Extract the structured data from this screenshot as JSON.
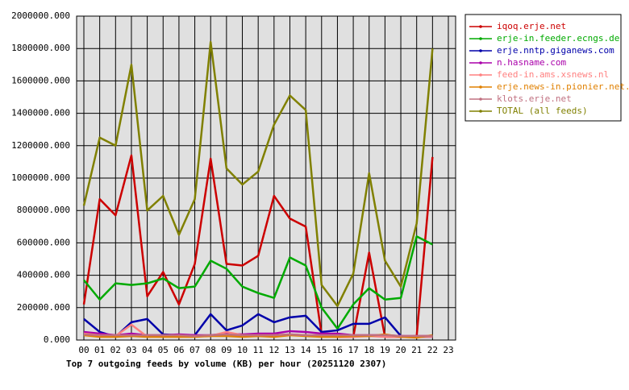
{
  "chart_data": {
    "type": "line",
    "title": "Top 7 outgoing feeds by volume (KB) per hour (20251120 2307)",
    "categories": [
      "00",
      "01",
      "02",
      "03",
      "04",
      "05",
      "06",
      "07",
      "08",
      "09",
      "10",
      "11",
      "12",
      "13",
      "14",
      "15",
      "16",
      "17",
      "18",
      "19",
      "20",
      "21",
      "22",
      "23"
    ],
    "ylim": [
      0,
      2000000
    ],
    "yticks": [
      {
        "value": 0,
        "label": "0.000"
      },
      {
        "value": 200000,
        "label": "200000.000"
      },
      {
        "value": 400000,
        "label": "400000.000"
      },
      {
        "value": 600000,
        "label": "600000.000"
      },
      {
        "value": 800000,
        "label": "800000.000"
      },
      {
        "value": 1000000,
        "label": "1000000.000"
      },
      {
        "value": 1200000,
        "label": "1200000.000"
      },
      {
        "value": 1400000,
        "label": "1400000.000"
      },
      {
        "value": 1600000,
        "label": "1600000.000"
      },
      {
        "value": 1800000,
        "label": "1800000.000"
      },
      {
        "value": 2000000,
        "label": "2000000.000"
      }
    ],
    "grid": true,
    "legend": "right",
    "series": [
      {
        "name": "iqoq.erje.net",
        "color": "#cc0000",
        "values": [
          220000,
          870000,
          770000,
          1140000,
          270000,
          420000,
          220000,
          470000,
          1120000,
          470000,
          460000,
          520000,
          890000,
          750000,
          700000,
          35000,
          20000,
          20000,
          540000,
          20000,
          20000,
          25000,
          1130000,
          null
        ]
      },
      {
        "name": "erje-in.feeder.ecngs.de",
        "color": "#00aa00",
        "values": [
          370000,
          250000,
          350000,
          340000,
          350000,
          380000,
          320000,
          330000,
          490000,
          440000,
          330000,
          290000,
          260000,
          510000,
          460000,
          200000,
          70000,
          220000,
          320000,
          250000,
          260000,
          640000,
          590000,
          null
        ]
      },
      {
        "name": "erje.nntp.giganews.com",
        "color": "#0000aa",
        "values": [
          130000,
          50000,
          20000,
          110000,
          130000,
          35000,
          30000,
          30000,
          160000,
          60000,
          90000,
          160000,
          110000,
          140000,
          150000,
          50000,
          60000,
          100000,
          100000,
          140000,
          25000,
          20000,
          20000,
          null
        ]
      },
      {
        "name": "n.hasname.com",
        "color": "#aa00aa",
        "values": [
          50000,
          40000,
          30000,
          40000,
          30000,
          30000,
          35000,
          30000,
          30000,
          40000,
          35000,
          40000,
          40000,
          55000,
          50000,
          40000,
          40000,
          30000,
          30000,
          30000,
          25000,
          25000,
          25000,
          null
        ]
      },
      {
        "name": "feed-in.ams.xsnews.nl",
        "color": "#ff8080",
        "values": [
          40000,
          30000,
          25000,
          95000,
          20000,
          25000,
          20000,
          25000,
          25000,
          50000,
          30000,
          30000,
          30000,
          35000,
          30000,
          25000,
          20000,
          20000,
          25000,
          20000,
          20000,
          20000,
          20000,
          null
        ]
      },
      {
        "name": "erje.news-in.pionier.net.pl",
        "color": "#e08000",
        "values": [
          30000,
          20000,
          20000,
          25000,
          20000,
          20000,
          20000,
          20000,
          25000,
          25000,
          20000,
          25000,
          20000,
          30000,
          25000,
          20000,
          20000,
          25000,
          25000,
          35000,
          20000,
          15000,
          30000,
          null
        ]
      },
      {
        "name": "klots.erje.net",
        "color": "#c07080",
        "values": [
          35000,
          30000,
          30000,
          30000,
          30000,
          30000,
          30000,
          25000,
          30000,
          35000,
          30000,
          30000,
          30000,
          35000,
          30000,
          30000,
          30000,
          30000,
          30000,
          30000,
          25000,
          25000,
          25000,
          null
        ]
      },
      {
        "name": "TOTAL (all feeds)",
        "color": "#808000",
        "values": [
          830000,
          1250000,
          1200000,
          1700000,
          800000,
          890000,
          650000,
          870000,
          1840000,
          1060000,
          960000,
          1040000,
          1330000,
          1510000,
          1420000,
          340000,
          210000,
          410000,
          1030000,
          490000,
          330000,
          720000,
          1800000,
          null
        ]
      }
    ]
  }
}
